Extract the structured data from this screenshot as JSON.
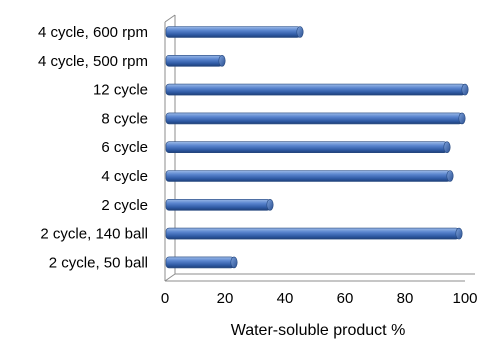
{
  "chart_data": {
    "type": "bar",
    "orientation": "horizontal",
    "categories": [
      "4 cycle, 600 rpm",
      "4 cycle, 500 rpm",
      "12 cycle",
      "8 cycle",
      "6 cycle",
      "4 cycle",
      "2 cycle",
      "2 cycle, 140 ball",
      "2 cycle, 50 ball"
    ],
    "values": [
      45,
      19,
      100,
      99,
      94,
      95,
      35,
      98,
      23
    ],
    "xlabel": "Water-soluble product %",
    "ylabel": "",
    "xlim": [
      0,
      100
    ],
    "xticks": [
      "0",
      "20",
      "40",
      "60",
      "80",
      "100"
    ],
    "grid": false,
    "legend": "none",
    "bar_color": "#3f6fc0",
    "style": "3d-cylinder"
  }
}
